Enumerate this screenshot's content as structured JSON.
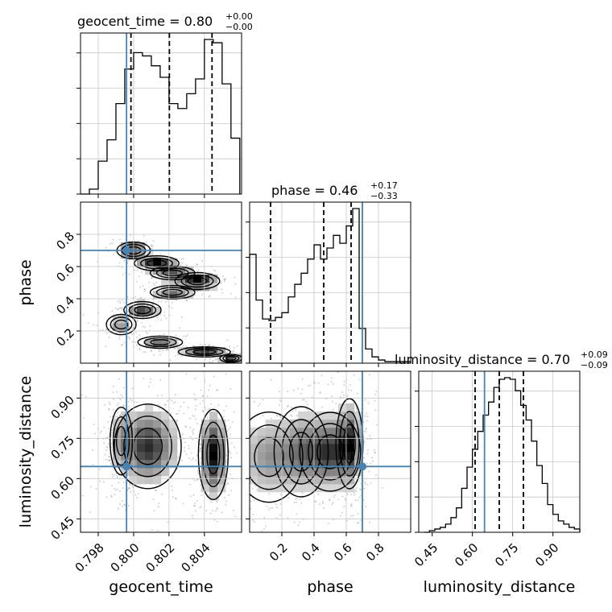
{
  "colors": {
    "truth": "#4682b4",
    "hist": "#000000",
    "grid": "#c8c8c8",
    "density_dark": "#000000",
    "density_light": "#f2f2f2",
    "points": "#7a7a7a"
  },
  "chart_data": {
    "type": "corner",
    "parameters": [
      "geocent_time",
      "phase",
      "luminosity_distance"
    ],
    "truths": {
      "geocent_time": 0.7996,
      "phase": 0.7,
      "luminosity_distance": 0.645
    },
    "titles": [
      {
        "text": "geocent_time = 0.80",
        "plus": "+0.00",
        "minus": "−0.00"
      },
      {
        "text": "phase = 0.46",
        "plus": "+0.17",
        "minus": "−0.33"
      },
      {
        "text": "luminosity_distance = 0.70",
        "plus": "+0.09",
        "minus": "−0.09"
      }
    ],
    "axes": {
      "geocent_time": {
        "range": [
          0.797,
          0.8061
        ],
        "ticks": [
          0.798,
          0.8,
          0.802,
          0.804
        ],
        "tick_labels": [
          "0.798",
          "0.800",
          "0.802",
          "0.804"
        ]
      },
      "phase": {
        "range": [
          0.0,
          1.0
        ],
        "ticks": [
          0.2,
          0.4,
          0.6,
          0.8
        ],
        "tick_labels": [
          "0.2",
          "0.4",
          "0.6",
          "0.8"
        ]
      },
      "luminosity_distance": {
        "range": [
          0.4,
          1.0
        ],
        "ticks": [
          0.45,
          0.6,
          0.75,
          0.9
        ],
        "tick_labels": [
          "0.45",
          "0.60",
          "0.75",
          "0.90"
        ]
      }
    },
    "histograms": [
      {
        "param": "geocent_time",
        "bin_edges": [
          0.797,
          0.7975,
          0.798,
          0.7985,
          0.799,
          0.7995,
          0.8,
          0.8005,
          0.801,
          0.8015,
          0.802,
          0.8025,
          0.803,
          0.8035,
          0.804,
          0.8045,
          0.805,
          0.8055,
          0.806
        ],
        "counts": [
          0,
          3,
          20,
          33,
          55,
          76,
          86,
          84,
          78,
          71,
          55,
          52,
          61,
          70,
          94,
          92,
          67,
          34
        ],
        "quantiles": [
          0.79985,
          0.80202,
          0.80443
        ]
      },
      {
        "param": "phase",
        "bin_edges": [
          0.0,
          0.04,
          0.08,
          0.12,
          0.16,
          0.2,
          0.24,
          0.28,
          0.32,
          0.36,
          0.4,
          0.44,
          0.48,
          0.52,
          0.56,
          0.6,
          0.64,
          0.68,
          0.72,
          0.76,
          0.8,
          0.84,
          0.88,
          0.92,
          0.96,
          1.0
        ],
        "counts": [
          69,
          40,
          28,
          27,
          29,
          32,
          42,
          50,
          57,
          66,
          75,
          66,
          73,
          81,
          76,
          87,
          98,
          22,
          9,
          4,
          2,
          1,
          1,
          1,
          1
        ],
        "quantiles": [
          0.13,
          0.46,
          0.63
        ]
      },
      {
        "param": "luminosity_distance",
        "bin_edges": [
          0.42,
          0.44,
          0.46,
          0.48,
          0.5,
          0.52,
          0.54,
          0.56,
          0.58,
          0.6,
          0.62,
          0.64,
          0.66,
          0.68,
          0.7,
          0.72,
          0.74,
          0.76,
          0.78,
          0.8,
          0.82,
          0.84,
          0.86,
          0.88,
          0.9,
          0.92,
          0.94,
          0.96,
          0.98,
          1.0
        ],
        "counts": [
          0,
          1,
          2,
          3,
          5,
          9,
          15,
          27,
          40,
          51,
          62,
          72,
          80,
          89,
          94,
          95,
          94,
          87,
          78,
          69,
          56,
          41,
          30,
          17,
          11,
          7,
          5,
          3,
          2
        ],
        "quantiles": [
          0.61,
          0.7,
          0.79
        ]
      }
    ],
    "pairs": [
      {
        "x": "geocent_time",
        "y": "phase"
      },
      {
        "x": "geocent_time",
        "y": "luminosity_distance"
      },
      {
        "x": "phase",
        "y": "luminosity_distance"
      }
    ],
    "grid": true,
    "xlabels": [
      "geocent_time",
      "phase",
      "luminosity_distance"
    ],
    "ylabels": [
      "",
      "phase",
      "luminosity_distance"
    ]
  }
}
